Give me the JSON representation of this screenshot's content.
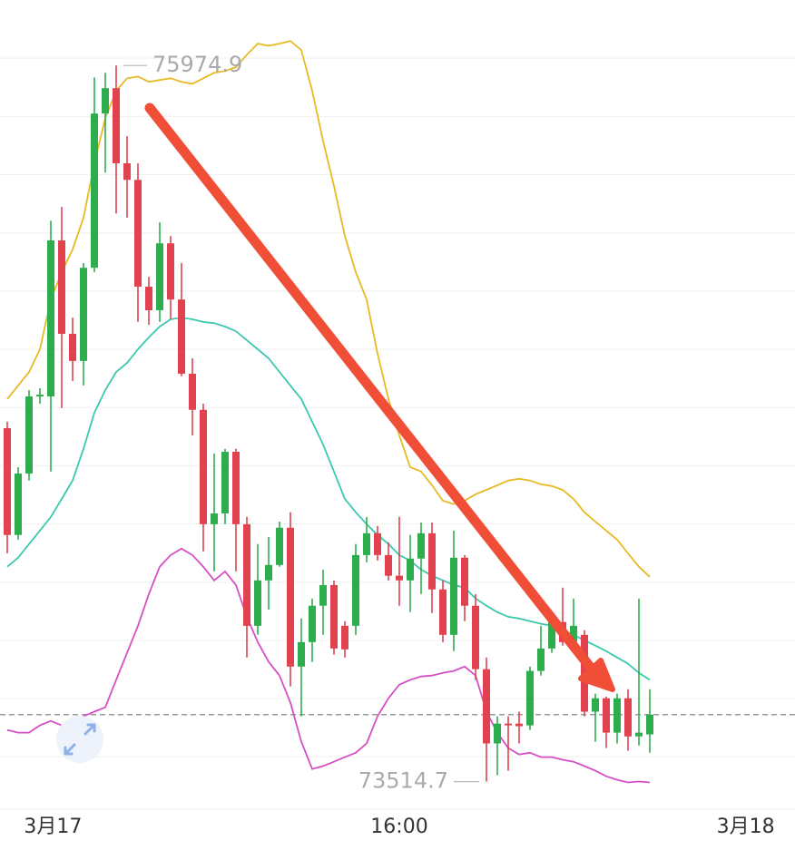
{
  "chart_data": {
    "type": "candlestick",
    "xlim": [
      -0.667,
      72.333
    ],
    "xticks": [
      {
        "value": 4.2,
        "label": "3月17"
      },
      {
        "value": 36,
        "label": "16:00"
      },
      {
        "value": 67.8,
        "label": "3月18"
      }
    ],
    "ylim": [
      73420,
      76200
    ],
    "yticks": [
      73600,
      73800,
      74000,
      74200,
      74400,
      74600,
      74800,
      75000,
      75200,
      75400,
      75600,
      75800,
      76000
    ],
    "grid": true,
    "up_color": "#2ead4f",
    "down_color": "#e0434f",
    "open": [
      74729,
      74362,
      74573,
      74838,
      74838,
      75374,
      75053,
      74960,
      75280,
      75810,
      75897,
      75639,
      75582,
      75215,
      75134,
      75364,
      75171,
      74916,
      74792,
      74399,
      74436,
      74648,
      74399,
      74050,
      74206,
      74259,
      74387,
      73910,
      73994,
      74119,
      74190,
      74050,
      74050,
      74293,
      74368,
      74293,
      74222,
      74206,
      74281,
      74368,
      74175,
      74019,
      74284,
      74119,
      73901,
      73646,
      73714,
      73714,
      73708,
      73895,
      73972,
      74063,
      73994,
      74019,
      73755,
      73801,
      73683,
      73801,
      73670,
      73677
    ],
    "close": [
      74362,
      74573,
      74838,
      74844,
      75374,
      75053,
      74960,
      75280,
      75810,
      75897,
      75639,
      75582,
      75215,
      75134,
      75364,
      75171,
      74916,
      74792,
      74399,
      74436,
      74648,
      74399,
      74050,
      74206,
      74259,
      74387,
      73910,
      73994,
      74119,
      74190,
      73972,
      73969,
      74293,
      74368,
      74293,
      74222,
      74206,
      74281,
      74368,
      74175,
      74019,
      74284,
      74119,
      73901,
      73646,
      73714,
      73708,
      73705,
      73895,
      73972,
      74063,
      73994,
      74050,
      73755,
      73801,
      73683,
      73801,
      73670,
      73683,
      73745
    ],
    "high": [
      74751,
      74595,
      74860,
      74866,
      75442,
      75489,
      75109,
      75296,
      75934,
      75950,
      75974.9,
      75732,
      75639,
      75249,
      75436,
      75389,
      75296,
      74969,
      74813,
      74642,
      74658,
      74658,
      74424,
      74331,
      74355,
      74408,
      74440,
      74075,
      74144,
      74243,
      74206,
      74066,
      74331,
      74424,
      74393,
      74337,
      74424,
      74362,
      74405,
      74405,
      74206,
      74377,
      74293,
      74159,
      73941,
      73739,
      73739,
      73755,
      73910,
      74050,
      74097,
      74181,
      74144,
      74035,
      73817,
      73807,
      73817,
      73832,
      74144,
      73832
    ],
    "low": [
      74299,
      74346,
      74549,
      74813,
      74580,
      74798,
      74891,
      74876,
      75265,
      75607,
      75467,
      75452,
      75094,
      75084,
      75094,
      75103,
      74907,
      74704,
      74306,
      74237,
      74399,
      74237,
      73941,
      74019,
      74106,
      74253,
      73842,
      73739,
      73926,
      74019,
      73951,
      73941,
      74019,
      74268,
      74274,
      74206,
      74119,
      74097,
      74159,
      74094,
      73994,
      73963,
      74066,
      73864,
      73514.7,
      73537,
      73552,
      73646,
      73692,
      73879,
      73957,
      73982,
      73982,
      73739,
      73652,
      73630,
      73646,
      73621,
      73639,
      73614
    ],
    "upper": [
      74829,
      74875,
      74922,
      75000,
      75171,
      75265,
      75343,
      75452,
      75639,
      75794,
      75888,
      75931,
      75937,
      75919,
      75925,
      75931,
      75919,
      75912,
      75931,
      75950,
      75956,
      75969,
      76012,
      76050,
      76043,
      76050,
      76059,
      76028,
      75888,
      75716,
      75561,
      75389,
      75265,
      75171,
      74985,
      74829,
      74704,
      74595,
      74580,
      74533,
      74480,
      74468,
      74480,
      74502,
      74517,
      74533,
      74549,
      74555,
      74549,
      74536,
      74530,
      74517,
      74486,
      74440,
      74408,
      74377,
      74346,
      74299,
      74253,
      74218
    ],
    "middle": [
      74253,
      74284,
      74331,
      74377,
      74424,
      74486,
      74549,
      74658,
      74782,
      74860,
      74922,
      74953,
      75000,
      75041,
      75078,
      75103,
      75109,
      75103,
      75094,
      75090,
      75078,
      75062,
      75031,
      75000,
      74969,
      74922,
      74875,
      74829,
      74751,
      74673,
      74580,
      74486,
      74440,
      74399,
      74362,
      74331,
      74293,
      74274,
      74243,
      74222,
      74206,
      74190,
      74181,
      74144,
      74119,
      74097,
      74081,
      74075,
      74066,
      74057,
      74050,
      74035,
      74019,
      74000,
      73982,
      73963,
      73941,
      73920,
      73888,
      73864
    ],
    "lower": [
      73692,
      73683,
      73683,
      73708,
      73723,
      73708,
      73708,
      73739,
      73755,
      73770,
      73864,
      73957,
      74050,
      74159,
      74253,
      74293,
      74315,
      74293,
      74253,
      74206,
      74237,
      74190,
      74081,
      73994,
      73926,
      73879,
      73786,
      73652,
      73558,
      73568,
      73583,
      73599,
      73614,
      73646,
      73739,
      73801,
      73848,
      73864,
      73876,
      73879,
      73888,
      73895,
      73910,
      73879,
      73755,
      73683,
      73630,
      73608,
      73614,
      73599,
      73599,
      73590,
      73583,
      73568,
      73552,
      73533,
      73521,
      73512,
      73515,
      73512
    ],
    "upper_color": "#e8b923",
    "middle_color": "#3cc8ae",
    "lower_color": "#d64fc4",
    "current_price": 73745,
    "high_label": 75974.9,
    "low_label": 73514.7
  }
}
